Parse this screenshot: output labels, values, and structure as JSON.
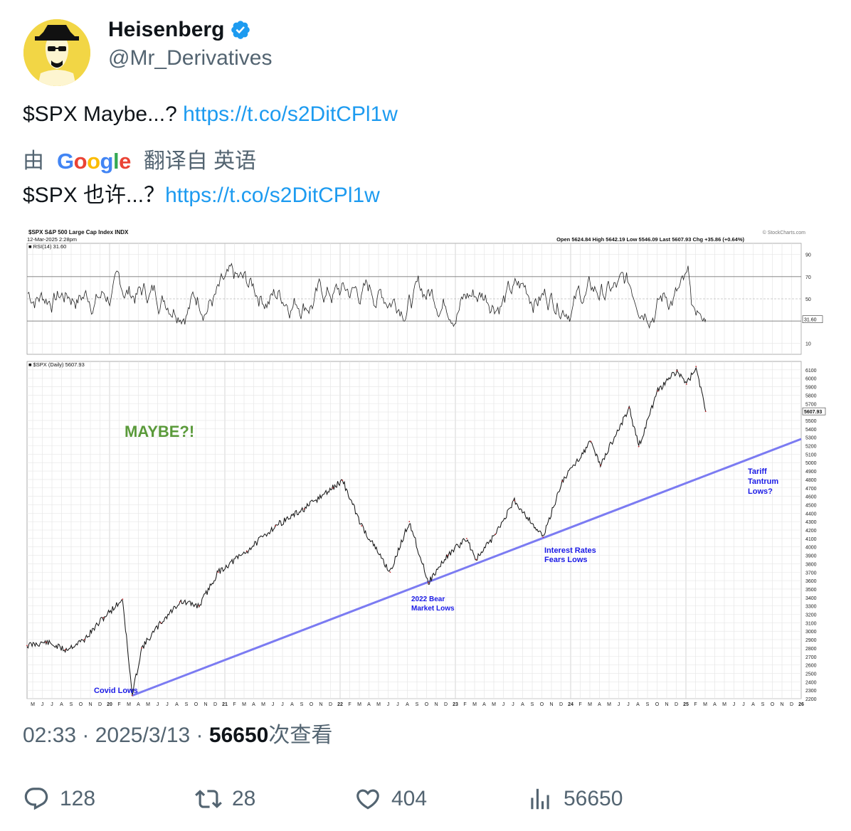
{
  "author": {
    "name": "Heisenberg",
    "handle": "@Mr_Derivatives"
  },
  "tweet": {
    "text": "$SPX Maybe...? ",
    "link": "https://t.co/s2DitCPl1w",
    "translate_prefix": "由",
    "translate_brand": "Google",
    "translate_suffix": "翻译自 英语",
    "translated_text": "$SPX 也许...？",
    "translated_link": "https://t.co/s2DitCPl1w"
  },
  "meta": {
    "time": "02:33",
    "date": "2025/3/13",
    "views": "56650",
    "views_label": "次查看",
    "sep": " · "
  },
  "actions": {
    "replies": "128",
    "retweets": "28",
    "likes": "404",
    "views": "56650"
  },
  "colors": {
    "link": "#1d9bf0",
    "muted": "#536471",
    "text": "#0f1419",
    "trendline": "#7b7bf2",
    "annotation_blue": "#1a1ae6",
    "maybe_green": "#5a9a3a"
  },
  "chart_data": {
    "type": "line",
    "header": {
      "symbol": "$SPX",
      "name": "S&P 500 Large Cap Index",
      "exchange": "INDX",
      "date": "12-Mar-2025 2:28pm",
      "open": "5624.84",
      "high": "5642.19",
      "low": "5546.09",
      "last": "5607.93",
      "chg": "+35.86 (+0.64%)",
      "source": "© StockCharts.com"
    },
    "rsi": {
      "label": "RSI(14) 31.60",
      "current": 31.6,
      "ticks": [
        "90",
        "70",
        "50",
        "30",
        "10"
      ],
      "current_label": "31.60"
    },
    "price": {
      "label": "$SPX (Daily) 5607.93",
      "current": 5607.93,
      "current_label": "5607.93",
      "ylim": [
        2200,
        6200
      ],
      "y_ticks": [
        "6100",
        "6000",
        "5900",
        "5800",
        "5700",
        "5600",
        "5500",
        "5400",
        "5300",
        "5200",
        "5100",
        "5000",
        "4900",
        "4800",
        "4700",
        "4600",
        "4500",
        "4400",
        "4300",
        "4200",
        "4100",
        "4000",
        "3900",
        "3800",
        "3700",
        "3600",
        "3500",
        "3400",
        "3300",
        "3200",
        "3100",
        "3000",
        "2900",
        "2800",
        "2700",
        "2600",
        "2500",
        "2400",
        "2300",
        "2200"
      ],
      "series": [
        {
          "values": [
            {
              "x": "2019-04",
              "y": 2830
            },
            {
              "x": "2019-06",
              "y": 2870
            },
            {
              "x": "2019-08",
              "y": 2780
            },
            {
              "x": "2019-10",
              "y": 2900
            },
            {
              "x": "2019-12",
              "y": 3160
            },
            {
              "x": "2020-02",
              "y": 3380
            },
            {
              "x": "2020-03",
              "y": 2237
            },
            {
              "x": "2020-04",
              "y": 2800
            },
            {
              "x": "2020-06",
              "y": 3100
            },
            {
              "x": "2020-08",
              "y": 3350
            },
            {
              "x": "2020-10",
              "y": 3300
            },
            {
              "x": "2020-12",
              "y": 3700
            },
            {
              "x": "2021-03",
              "y": 3950
            },
            {
              "x": "2021-06",
              "y": 4250
            },
            {
              "x": "2021-09",
              "y": 4450
            },
            {
              "x": "2021-12",
              "y": 4700
            },
            {
              "x": "2022-01",
              "y": 4790
            },
            {
              "x": "2022-03",
              "y": 4250
            },
            {
              "x": "2022-06",
              "y": 3700
            },
            {
              "x": "2022-08",
              "y": 4300
            },
            {
              "x": "2022-10",
              "y": 3577
            },
            {
              "x": "2022-12",
              "y": 3900
            },
            {
              "x": "2023-02",
              "y": 4100
            },
            {
              "x": "2023-03",
              "y": 3850
            },
            {
              "x": "2023-05",
              "y": 4150
            },
            {
              "x": "2023-07",
              "y": 4550
            },
            {
              "x": "2023-10",
              "y": 4117
            },
            {
              "x": "2023-12",
              "y": 4780
            },
            {
              "x": "2024-03",
              "y": 5250
            },
            {
              "x": "2024-04",
              "y": 4970
            },
            {
              "x": "2024-07",
              "y": 5650
            },
            {
              "x": "2024-08",
              "y": 5190
            },
            {
              "x": "2024-10",
              "y": 5850
            },
            {
              "x": "2024-12",
              "y": 6090
            },
            {
              "x": "2025-01",
              "y": 5930
            },
            {
              "x": "2025-02",
              "y": 6140
            },
            {
              "x": "2025-03",
              "y": 5607
            }
          ]
        }
      ]
    },
    "trendline": {
      "from": {
        "x": "2020-03",
        "y": 2237
      },
      "to": {
        "x": "2026-01",
        "y": 5280
      }
    },
    "annotations": {
      "maybe": "MAYBE?!",
      "covid": "Covid Lows",
      "bear1": "2022 Bear",
      "bear2": "Market Lows",
      "rates1": "Interest Rates",
      "rates2": "Fears Lows",
      "tariff1": "Tariff",
      "tariff2": "Tantrum",
      "tariff3": "Lows?"
    },
    "x_ticks": [
      "M",
      "J",
      "J",
      "A",
      "S",
      "O",
      "N",
      "D",
      "20",
      "F",
      "M",
      "A",
      "M",
      "J",
      "J",
      "A",
      "S",
      "O",
      "N",
      "D",
      "21",
      "F",
      "M",
      "A",
      "M",
      "J",
      "J",
      "A",
      "S",
      "O",
      "N",
      "D",
      "22",
      "F",
      "M",
      "A",
      "M",
      "J",
      "J",
      "A",
      "S",
      "O",
      "N",
      "D",
      "23",
      "F",
      "M",
      "A",
      "M",
      "J",
      "J",
      "A",
      "S",
      "O",
      "N",
      "D",
      "24",
      "F",
      "M",
      "A",
      "M",
      "J",
      "J",
      "A",
      "S",
      "O",
      "N",
      "D",
      "25",
      "F",
      "M",
      "A",
      "M",
      "J",
      "J",
      "A",
      "S",
      "O",
      "N",
      "D",
      "26"
    ]
  }
}
